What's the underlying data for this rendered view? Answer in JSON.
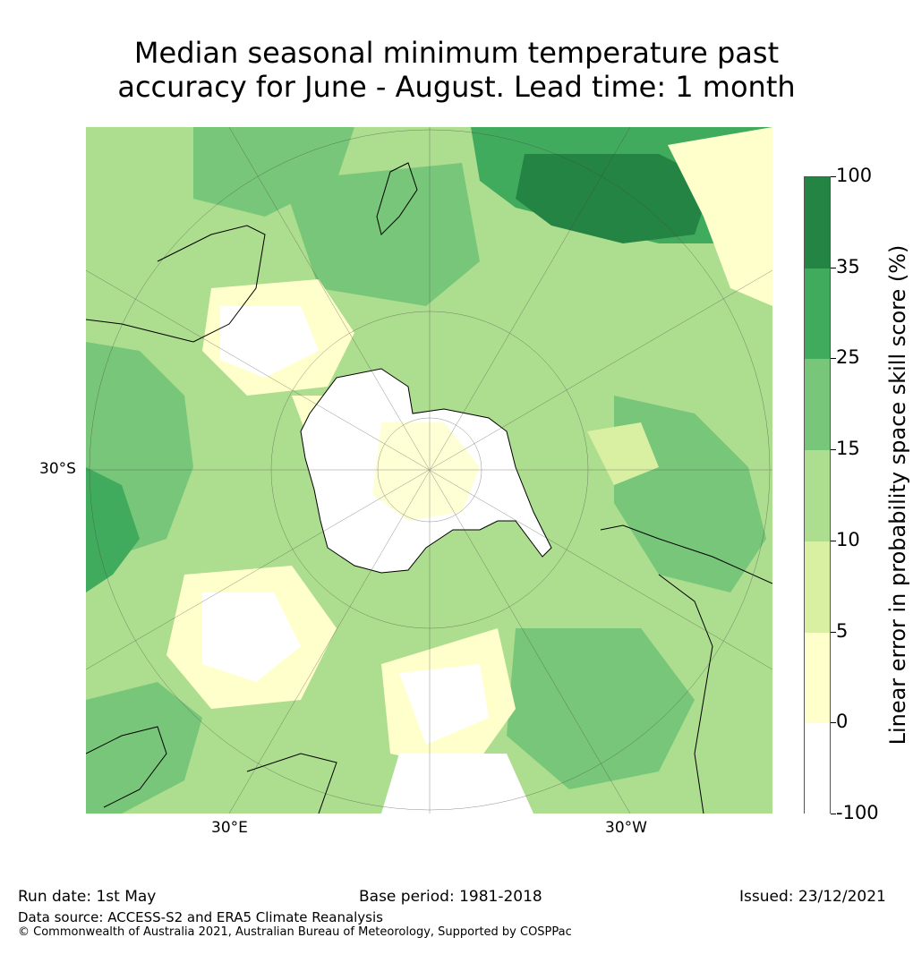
{
  "title": {
    "line1": "Median seasonal minimum temperature past",
    "line2": "accuracy for June - August. Lead time: 1 month"
  },
  "map": {
    "labels": {
      "lat_30s": "30°S",
      "lon_30e": "30°E",
      "lon_30w": "30°W"
    },
    "palette": {
      "neg": "#ffffff",
      "c0_5": "#ffffcc",
      "c5_10": "#d9f0a3",
      "c10_15": "#addd8e",
      "c15_25": "#78c679",
      "c25_35": "#41ab5d",
      "c35_100": "#238443"
    }
  },
  "colorbar": {
    "label": "Linear error in probability space skill score (%)",
    "ticks": [
      "100",
      "35",
      "25",
      "15",
      "10",
      "5",
      "0",
      "-100"
    ],
    "colors": [
      "#238443",
      "#41ab5d",
      "#78c679",
      "#addd8e",
      "#d9f0a3",
      "#ffffcc",
      "#ffffff"
    ]
  },
  "footer": {
    "run_date": "Run date: 1st May",
    "base_period": "Base period: 1981-2018",
    "issued": "Issued: 23/12/2021",
    "data_source": "Data source: ACCESS-S2 and ERA5 Climate Reanalysis",
    "copyright": "© Commonwealth of Australia 2021, Australian Bureau of Meteorology, Supported by COSPPac"
  }
}
